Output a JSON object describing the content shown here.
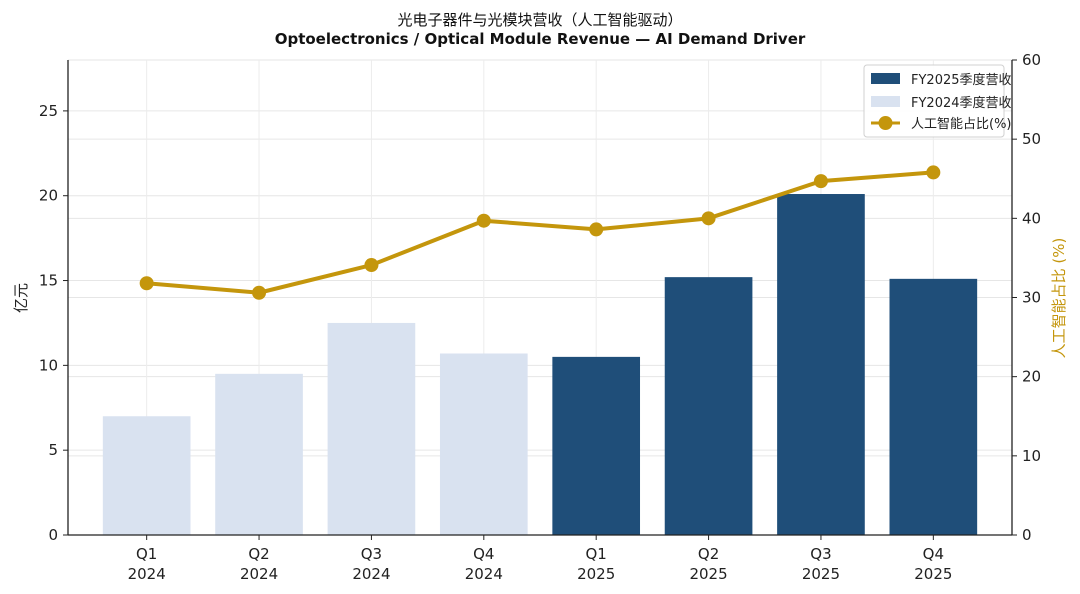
{
  "chart_data": {
    "type": "bar+line",
    "title": "光电子器件与光模块营收（人工智能驱动）",
    "subtitle": "Optoelectronics / Optical Module Revenue — AI Demand Driver",
    "categories": [
      {
        "quarter": "Q1",
        "year": "2024"
      },
      {
        "quarter": "Q2",
        "year": "2024"
      },
      {
        "quarter": "Q3",
        "year": "2024"
      },
      {
        "quarter": "Q4",
        "year": "2024"
      },
      {
        "quarter": "Q1",
        "year": "2025"
      },
      {
        "quarter": "Q2",
        "year": "2025"
      },
      {
        "quarter": "Q3",
        "year": "2025"
      },
      {
        "quarter": "Q4",
        "year": "2025"
      }
    ],
    "bar_values": [
      7.0,
      9.5,
      12.5,
      10.7,
      10.5,
      15.2,
      20.1,
      15.1
    ],
    "bar_series": [
      {
        "name": "FY2025季度营收",
        "color": "#1f4e79",
        "indices": [
          4,
          5,
          6,
          7
        ]
      },
      {
        "name": "FY2024季度营收",
        "color": "#d9e2f0",
        "indices": [
          0,
          1,
          2,
          3
        ]
      }
    ],
    "line_series": {
      "name": "人工智能占比(%)",
      "color": "#c4960c",
      "values": [
        31.8,
        30.6,
        34.1,
        39.7,
        38.6,
        40.0,
        44.7,
        45.8
      ]
    },
    "ylabel": "亿元",
    "y2label": "人工智能占比 (%)",
    "ylim": [
      0,
      28
    ],
    "y2lim": [
      0,
      60
    ],
    "yticks": [
      0,
      5,
      10,
      15,
      20,
      25
    ],
    "y2ticks": [
      0,
      10,
      20,
      30,
      40,
      50,
      60
    ],
    "grid": true,
    "legend_position": "top-right"
  }
}
